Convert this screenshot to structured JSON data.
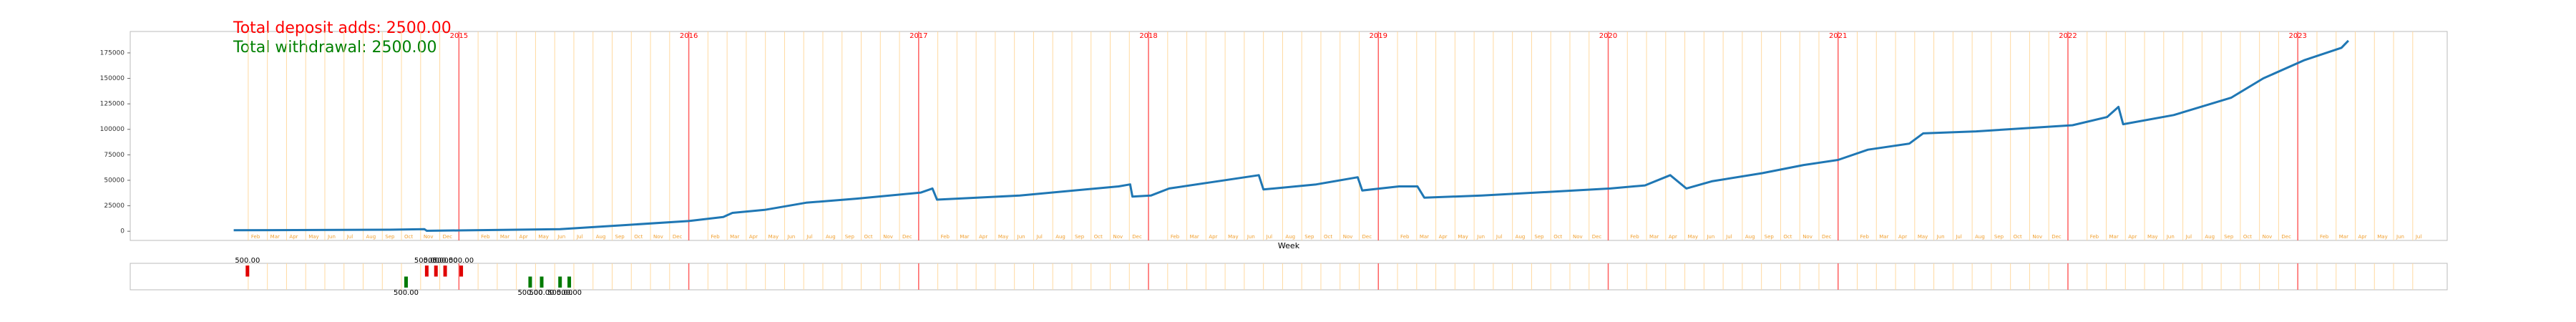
{
  "chart_data": {
    "type": "line",
    "annotations": [
      "Total deposit adds: 2500.00",
      "Total withdrawal: 2500.00"
    ],
    "annotation_colors": [
      "#ff0000",
      "#008000"
    ],
    "xlabel": "Week",
    "xlim": [
      2013.57,
      2023.65
    ],
    "xticks": [
      2015,
      2016,
      2017,
      2018,
      2019,
      2020,
      2021,
      2022,
      2023
    ],
    "month_names": [
      "Jan",
      "Feb",
      "Mar",
      "Apr",
      "May",
      "Jun",
      "Jul",
      "Aug",
      "Sep",
      "Oct",
      "Nov",
      "Dec"
    ],
    "ylim": [
      -9000,
      196000
    ],
    "yticks": [
      0,
      25000,
      50000,
      75000,
      100000,
      125000,
      150000,
      175000
    ],
    "series": [
      {
        "color": "#1f77b4",
        "x": [
          2014.02,
          2014.7,
          2014.85,
          2014.86,
          2015.0,
          2015.44,
          2015.72,
          2016.0,
          2016.15,
          2016.19,
          2016.33,
          2016.51,
          2016.73,
          2017.01,
          2017.06,
          2017.08,
          2017.44,
          2017.87,
          2017.92,
          2017.93,
          2018.01,
          2018.09,
          2018.27,
          2018.48,
          2018.5,
          2018.73,
          2018.91,
          2018.93,
          2019.09,
          2019.17,
          2019.2,
          2019.45,
          2020.01,
          2020.16,
          2020.27,
          2020.34,
          2020.45,
          2020.67,
          2020.85,
          2021.0,
          2021.13,
          2021.31,
          2021.37,
          2021.6,
          2022.02,
          2022.17,
          2022.22,
          2022.24,
          2022.46,
          2022.71,
          2022.85,
          2023.03,
          2023.19,
          2023.22
        ],
        "values": [
          1000,
          1500,
          2000,
          500,
          800,
          2000,
          6000,
          10000,
          14000,
          18000,
          21000,
          28000,
          32000,
          38000,
          42000,
          31000,
          35000,
          44000,
          46000,
          34000,
          35000,
          42000,
          48000,
          55000,
          41000,
          46000,
          53000,
          40000,
          44000,
          44000,
          33000,
          35000,
          42000,
          45000,
          55000,
          42000,
          49000,
          57000,
          65000,
          70000,
          80000,
          86000,
          96000,
          98000,
          104000,
          112000,
          122000,
          105000,
          114000,
          131000,
          150000,
          168000,
          180000,
          187000
        ]
      }
    ],
    "transactions": {
      "ylim": [
        -600,
        600
      ],
      "series": [
        {
          "color": "#e00000",
          "direction": "up",
          "x": [
            2014.08,
            2014.86,
            2014.9,
            2014.94,
            2015.01
          ],
          "values": [
            500,
            500,
            500,
            500,
            500
          ],
          "value_labels": [
            "500.00",
            "500.00",
            "500.00",
            "500.00",
            "500.00"
          ]
        },
        {
          "color": "#007a00",
          "direction": "down",
          "x": [
            2014.77,
            2015.31,
            2015.36,
            2015.44,
            2015.48
          ],
          "values": [
            500,
            500,
            500,
            500,
            500
          ],
          "value_labels": [
            "500.00",
            "500.00",
            "500.00",
            "500.00",
            "500.00"
          ]
        }
      ]
    }
  }
}
